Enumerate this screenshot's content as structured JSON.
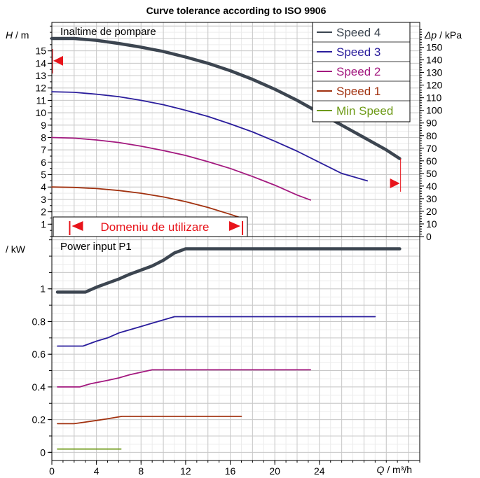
{
  "chart_data": {
    "title": "Curve tolerance according to ISO 9906",
    "x_axis": {
      "label_var": "Q",
      "label_unit": " / m³/h",
      "range": [
        0,
        33
      ],
      "ticks": [
        0,
        4,
        8,
        12,
        16,
        20,
        24
      ]
    },
    "head_panel": {
      "type": "line",
      "panel_label": "Inaltime de pompare",
      "y_left_var": "H",
      "y_left_unit": " / m",
      "y_left_range": [
        0,
        17.3
      ],
      "y_left_ticks": [
        1,
        2,
        3,
        4,
        5,
        6,
        7,
        8,
        9,
        10,
        11,
        12,
        13,
        14,
        15
      ],
      "y_right_var": "Δp",
      "y_right_unit": " / kPa",
      "y_right_ticks": [
        0,
        10,
        20,
        30,
        40,
        50,
        60,
        70,
        80,
        90,
        100,
        110,
        120,
        130,
        140,
        150
      ],
      "markers": {
        "left_arrow_head": 14.2,
        "right_arrow_head": 4.3,
        "right_arrow_flow": 30.4
      },
      "domain_bracket": {
        "label": "Domeniu de utilizare",
        "q_start": 1.6,
        "q_end": 17.1
      },
      "series": [
        {
          "name": "Speed 4",
          "color": "#3c4550",
          "width": 4.5,
          "x": [
            0,
            2,
            4,
            6,
            8,
            10,
            12,
            14,
            16,
            18,
            20,
            22,
            24,
            26,
            28,
            30,
            31.2
          ],
          "y": [
            16.0,
            16.0,
            15.85,
            15.6,
            15.3,
            14.95,
            14.5,
            14.0,
            13.4,
            12.7,
            11.9,
            11.0,
            10.0,
            9.0,
            8.0,
            7.0,
            6.3
          ]
        },
        {
          "name": "Speed 3",
          "color": "#2a1d9c",
          "width": 1.8,
          "x": [
            0,
            2,
            4,
            6,
            8,
            10,
            12,
            14,
            16,
            18,
            20,
            22,
            24,
            26,
            28.3
          ],
          "y": [
            11.7,
            11.65,
            11.5,
            11.3,
            11.0,
            10.65,
            10.2,
            9.7,
            9.1,
            8.45,
            7.7,
            6.9,
            6.0,
            5.1,
            4.5
          ]
        },
        {
          "name": "Speed 2",
          "color": "#a3197f",
          "width": 1.8,
          "x": [
            0,
            2,
            4,
            6,
            8,
            10,
            12,
            14,
            16,
            18,
            20,
            22,
            23.2
          ],
          "y": [
            8.0,
            7.95,
            7.8,
            7.6,
            7.3,
            6.95,
            6.55,
            6.05,
            5.5,
            4.85,
            4.15,
            3.35,
            2.95
          ]
        },
        {
          "name": "Speed 1",
          "color": "#a1310f",
          "width": 1.8,
          "x": [
            0,
            2,
            4,
            6,
            8,
            10,
            12,
            14,
            16,
            17.0
          ],
          "y": [
            4.0,
            3.97,
            3.88,
            3.72,
            3.5,
            3.2,
            2.82,
            2.35,
            1.8,
            1.5
          ]
        },
        {
          "name": "Min Speed",
          "color": "#6e9a17",
          "width": 1.8,
          "x": [],
          "y": []
        }
      ]
    },
    "power_panel": {
      "type": "line",
      "panel_label": "Power input P1",
      "y_unit": " / kW",
      "y_range": [
        -0.05,
        1.32
      ],
      "y_ticks": [
        "0",
        "0.2",
        "0.4",
        "0.6",
        "0.8",
        "1"
      ],
      "series": [
        {
          "name": "Speed 4",
          "color": "#3c4550",
          "width": 4.5,
          "x": [
            0.5,
            3.0,
            4.0,
            6.0,
            7.0,
            8.0,
            9.0,
            10.0,
            11.0,
            12.0,
            16.0,
            20.0,
            24.0,
            28.0,
            31.2
          ],
          "y": [
            0.98,
            0.98,
            1.01,
            1.06,
            1.09,
            1.115,
            1.14,
            1.175,
            1.22,
            1.245,
            1.245,
            1.245,
            1.245,
            1.245,
            1.245
          ]
        },
        {
          "name": "Speed 3",
          "color": "#2a1d9c",
          "width": 1.8,
          "x": [
            0.5,
            2.8,
            4.0,
            5.0,
            6.0,
            7.0,
            8.0,
            9.0,
            10.0,
            11.0,
            14.0,
            18.0,
            22.0,
            26.0,
            29.0
          ],
          "y": [
            0.65,
            0.65,
            0.68,
            0.7,
            0.73,
            0.75,
            0.77,
            0.79,
            0.81,
            0.83,
            0.83,
            0.83,
            0.83,
            0.83,
            0.83
          ]
        },
        {
          "name": "Speed 2",
          "color": "#a3197f",
          "width": 1.8,
          "x": [
            0.5,
            2.5,
            3.5,
            5.0,
            6.0,
            7.0,
            8.0,
            9.0,
            12.0,
            16.0,
            20.0,
            23.2
          ],
          "y": [
            0.4,
            0.4,
            0.42,
            0.44,
            0.455,
            0.475,
            0.49,
            0.505,
            0.505,
            0.505,
            0.505,
            0.505
          ]
        },
        {
          "name": "Speed 1",
          "color": "#a1310f",
          "width": 1.8,
          "x": [
            0.5,
            2.0,
            3.0,
            4.0,
            5.0,
            6.3,
            8.0,
            10.0,
            12.0,
            14.0,
            17.0
          ],
          "y": [
            0.175,
            0.175,
            0.185,
            0.195,
            0.205,
            0.22,
            0.22,
            0.22,
            0.22,
            0.22,
            0.22
          ]
        },
        {
          "name": "Min Speed",
          "color": "#6e9a17",
          "width": 1.8,
          "x": [
            0.5,
            6.2
          ],
          "y": [
            0.02,
            0.02
          ]
        }
      ]
    }
  }
}
